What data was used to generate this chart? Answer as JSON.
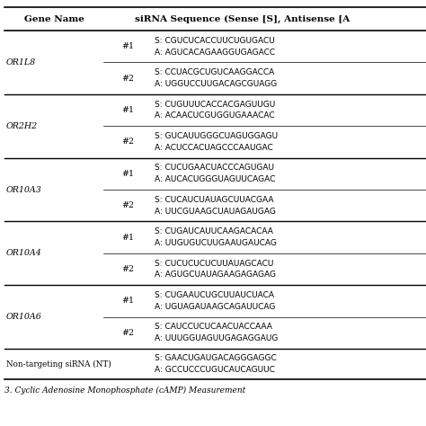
{
  "title_col1": "Gene Name",
  "title_col2": "siRNA Sequence (Sense [S], Antisense [A",
  "background_color": "#ffffff",
  "rows": [
    {
      "gene": "OR1L8",
      "entries": [
        {
          "num": "#1",
          "sense": "S: CGUCUCACCUUCUGUGACU",
          "antisense": "A: AGUCACAGAAGGUGAGACC"
        },
        {
          "num": "#2",
          "sense": "S: CCUACGCUGUCAAGGACCA",
          "antisense": "A: UGGUCCUUGACAGCGUAGG"
        }
      ]
    },
    {
      "gene": "OR2H2",
      "entries": [
        {
          "num": "#1",
          "sense": "S: CUGUUUCACCACGAGUUGU",
          "antisense": "A: ACAACUCGUGGUGAAACAC"
        },
        {
          "num": "#2",
          "sense": "S: GUCAUUGGGCUAGUGGAGU",
          "antisense": "A: ACUCCACUAGCCCAAUGAC"
        }
      ]
    },
    {
      "gene": "OR10A3",
      "entries": [
        {
          "num": "#1",
          "sense": "S: CUCUGAACUACCCAGUGAU",
          "antisense": "A: AUCACUGGGUAGUUCAGAC"
        },
        {
          "num": "#2",
          "sense": "S: CUCAUCUAUAGCUUACGAA",
          "antisense": "A: UUCGUAAGCUAUAGAUGAG"
        }
      ]
    },
    {
      "gene": "OR10A4",
      "entries": [
        {
          "num": "#1",
          "sense": "S: CUGAUCAUUCAAGACACAA",
          "antisense": "A: UUGUGUCUUGAAUGAUCAG"
        },
        {
          "num": "#2",
          "sense": "S: CUCUCUCUCUUAUAGCACU",
          "antisense": "A: AGUGCUAUAGAAGAGAGAG"
        }
      ]
    },
    {
      "gene": "OR10A6",
      "entries": [
        {
          "num": "#1",
          "sense": "S: CUGAAUCUGCUUAUCUACA",
          "antisense": "A: UGUAGAUAAGCAGAUUCAG"
        },
        {
          "num": "#2",
          "sense": "S: CAUCCUCUCAACUACCAAA",
          "antisense": "A: UUUGGUAGUUGAGAGGAUG"
        }
      ]
    }
  ],
  "nt_gene": "Non-targeting siRNA (NT)",
  "nt_sense": "S: GAACUGAUGACAGGGAGGC",
  "nt_antisense": "A: GCCUCCCUGUCAUCAGUUC",
  "footer": "3. Cyclic Adenosine Monophosphate (cAMP) Measurement",
  "header_fontsize": 7.5,
  "body_fontsize": 6.8,
  "seq_fontsize": 6.5,
  "footer_fontsize": 6.5
}
